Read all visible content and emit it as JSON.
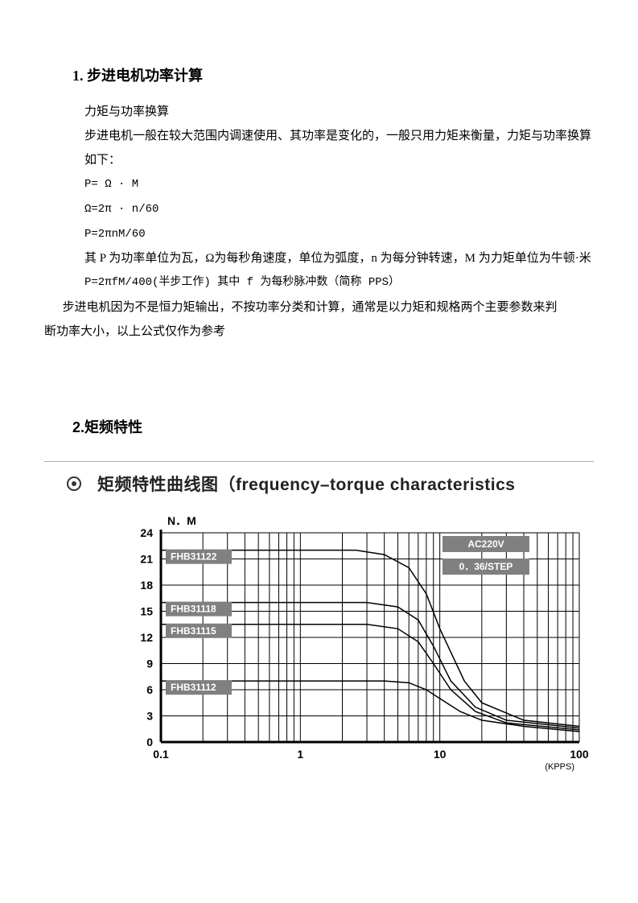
{
  "section1": {
    "heading": "1. 步进电机功率计算",
    "sub": "力矩与功率换算",
    "intro": "步进电机一般在较大范围内调速使用、其功率是变化的，一般只用力矩来衡量，力矩与功率换算如下：",
    "eq1": "P=  Ω · M",
    "eq2": "Ω=2π · n/60",
    "eq3": "P=2πnM/60",
    "explain": "其 P 为功率单位为瓦，Ω为每秒角速度，单位为弧度，n 为每分钟转速，M 为力矩单位为牛顿·米",
    "eq4": "P=2πfM/400(半步工作)   其中 f 为每秒脉冲数（简称 PPS）",
    "note1": "步进电机因为不是恒力矩输出，不按功率分类和计算，通常是以力矩和规格两个主要参数来判",
    "note2": "断功率大小，以上公式仅作为参考"
  },
  "section2": {
    "heading": "2.矩频特性"
  },
  "chart": {
    "type": "line",
    "title": "矩频特性曲线图（frequency–torque characteristics",
    "y_axis_label": "N．M",
    "x_axis_unit": "(KPPS)",
    "y_ticks": [
      0,
      3,
      6,
      9,
      12,
      15,
      18,
      21,
      24
    ],
    "x_ticks": [
      0.1,
      1,
      10,
      100
    ],
    "x_tick_labels": [
      "0.1",
      "1",
      "10",
      "100"
    ],
    "ylim": [
      0,
      24
    ],
    "xlim": [
      0.1,
      100
    ],
    "x_scale": "log",
    "background_color": "#ffffff",
    "axis_color": "#000000",
    "axis_width": 3,
    "grid_color": "#000000",
    "grid_width": 1,
    "curve_color": "#000000",
    "curve_width": 1.5,
    "label_box_color": "#808080",
    "label_text_color": "#ffffff",
    "label_fontsize": 12,
    "tick_fontsize": 14,
    "info_labels": [
      {
        "text": "AC220V"
      },
      {
        "text": "0．36/STEP"
      }
    ],
    "series": [
      {
        "name": "FHB31122",
        "plateau": 22,
        "points": [
          [
            0.1,
            22
          ],
          [
            2.5,
            22
          ],
          [
            4,
            21.5
          ],
          [
            6,
            20
          ],
          [
            8,
            17
          ],
          [
            10,
            13
          ],
          [
            15,
            7
          ],
          [
            20,
            4.5
          ],
          [
            40,
            2.5
          ],
          [
            100,
            1.8
          ]
        ]
      },
      {
        "name": "FHB31118",
        "plateau": 16,
        "points": [
          [
            0.1,
            16
          ],
          [
            3,
            16
          ],
          [
            5,
            15.5
          ],
          [
            7,
            14
          ],
          [
            9,
            11
          ],
          [
            12,
            7
          ],
          [
            18,
            4
          ],
          [
            30,
            2.5
          ],
          [
            100,
            1.6
          ]
        ]
      },
      {
        "name": "FHB31115",
        "plateau": 13.5,
        "points": [
          [
            0.1,
            13.5
          ],
          [
            3,
            13.5
          ],
          [
            5,
            13
          ],
          [
            7,
            11.5
          ],
          [
            9,
            9
          ],
          [
            12,
            6
          ],
          [
            18,
            3.5
          ],
          [
            30,
            2.2
          ],
          [
            100,
            1.4
          ]
        ]
      },
      {
        "name": "FHB31112",
        "plateau": 7,
        "points": [
          [
            0.1,
            7
          ],
          [
            4,
            7
          ],
          [
            6,
            6.8
          ],
          [
            8,
            6
          ],
          [
            10,
            5
          ],
          [
            14,
            3.5
          ],
          [
            20,
            2.5
          ],
          [
            40,
            1.8
          ],
          [
            100,
            1.2
          ]
        ]
      }
    ]
  }
}
